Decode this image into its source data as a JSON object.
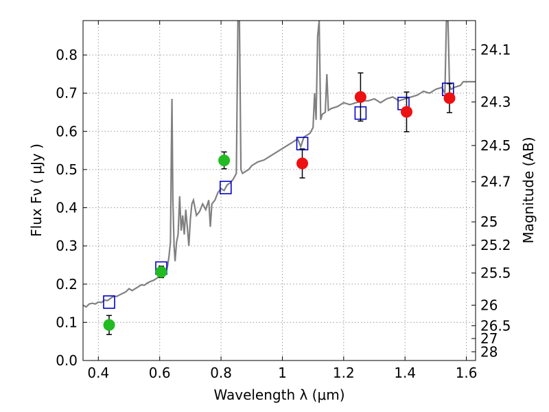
{
  "chart_data": {
    "type": "scatter",
    "title": "",
    "xlabel": "Wavelength  λ (μm)",
    "ylabel": "Flux  Fν  ( μJy )",
    "y2label": "Magnitude (AB)",
    "xlim": [
      0.35,
      1.63
    ],
    "ylim": [
      0.0,
      0.89
    ],
    "grid": true,
    "x_ticks": [
      {
        "value": 0.4,
        "label": "0.4"
      },
      {
        "value": 0.6,
        "label": "0.6"
      },
      {
        "value": 0.8,
        "label": "0.8"
      },
      {
        "value": 1.0,
        "label": "1"
      },
      {
        "value": 1.2,
        "label": "1.2"
      },
      {
        "value": 1.4,
        "label": "1.4"
      },
      {
        "value": 1.6,
        "label": "1.6"
      }
    ],
    "y_ticks": [
      {
        "value": 0.0,
        "label": "0.0"
      },
      {
        "value": 0.1,
        "label": "0.1"
      },
      {
        "value": 0.2,
        "label": "0.2"
      },
      {
        "value": 0.3,
        "label": "0.3"
      },
      {
        "value": 0.4,
        "label": "0.4"
      },
      {
        "value": 0.5,
        "label": "0.5"
      },
      {
        "value": 0.6,
        "label": "0.6"
      },
      {
        "value": 0.7,
        "label": "0.7"
      },
      {
        "value": 0.8,
        "label": "0.8"
      }
    ],
    "y2_ticks": [
      {
        "flux": 0.814,
        "label": "24.1"
      },
      {
        "flux": 0.677,
        "label": "24.3"
      },
      {
        "flux": 0.563,
        "label": "24.5"
      },
      {
        "flux": 0.468,
        "label": "24.7"
      },
      {
        "flux": 0.363,
        "label": "25"
      },
      {
        "flux": 0.302,
        "label": "25.2"
      },
      {
        "flux": 0.229,
        "label": "25.5"
      },
      {
        "flux": 0.145,
        "label": "26"
      },
      {
        "flux": 0.0912,
        "label": "26.5"
      },
      {
        "flux": 0.0575,
        "label": "27"
      },
      {
        "flux": 0.0229,
        "label": "28"
      }
    ],
    "colors": {
      "sed": "#808080",
      "model_box": "#0000cc",
      "green_point": "#22bb22",
      "red_point": "#ee1111",
      "errorbar": "#000000",
      "grid": "#9a9a9a"
    },
    "series": [
      {
        "name": "model-sed",
        "kind": "line",
        "points": [
          [
            0.35,
            0.145
          ],
          [
            0.36,
            0.14
          ],
          [
            0.37,
            0.148
          ],
          [
            0.38,
            0.15
          ],
          [
            0.39,
            0.148
          ],
          [
            0.4,
            0.153
          ],
          [
            0.41,
            0.152
          ],
          [
            0.42,
            0.158
          ],
          [
            0.43,
            0.157
          ],
          [
            0.44,
            0.163
          ],
          [
            0.45,
            0.168
          ],
          [
            0.46,
            0.168
          ],
          [
            0.47,
            0.172
          ],
          [
            0.48,
            0.176
          ],
          [
            0.49,
            0.18
          ],
          [
            0.5,
            0.188
          ],
          [
            0.51,
            0.183
          ],
          [
            0.52,
            0.188
          ],
          [
            0.53,
            0.193
          ],
          [
            0.54,
            0.198
          ],
          [
            0.55,
            0.197
          ],
          [
            0.56,
            0.203
          ],
          [
            0.57,
            0.207
          ],
          [
            0.58,
            0.21
          ],
          [
            0.59,
            0.215
          ],
          [
            0.6,
            0.222
          ],
          [
            0.61,
            0.228
          ],
          [
            0.62,
            0.232
          ],
          [
            0.625,
            0.245
          ],
          [
            0.63,
            0.27
          ],
          [
            0.635,
            0.31
          ],
          [
            0.638,
            0.55
          ],
          [
            0.64,
            0.685
          ],
          [
            0.643,
            0.42
          ],
          [
            0.647,
            0.3
          ],
          [
            0.65,
            0.26
          ],
          [
            0.655,
            0.31
          ],
          [
            0.66,
            0.33
          ],
          [
            0.665,
            0.43
          ],
          [
            0.67,
            0.34
          ],
          [
            0.675,
            0.38
          ],
          [
            0.68,
            0.33
          ],
          [
            0.685,
            0.395
          ],
          [
            0.69,
            0.35
          ],
          [
            0.695,
            0.3
          ],
          [
            0.7,
            0.37
          ],
          [
            0.705,
            0.41
          ],
          [
            0.71,
            0.42
          ],
          [
            0.72,
            0.38
          ],
          [
            0.73,
            0.39
          ],
          [
            0.74,
            0.41
          ],
          [
            0.75,
            0.395
          ],
          [
            0.76,
            0.42
          ],
          [
            0.765,
            0.35
          ],
          [
            0.77,
            0.41
          ],
          [
            0.78,
            0.42
          ],
          [
            0.79,
            0.44
          ],
          [
            0.8,
            0.45
          ],
          [
            0.81,
            0.445
          ],
          [
            0.82,
            0.46
          ],
          [
            0.83,
            0.465
          ],
          [
            0.84,
            0.475
          ],
          [
            0.85,
            0.49
          ],
          [
            0.855,
            0.89
          ],
          [
            0.86,
            0.89
          ],
          [
            0.865,
            0.5
          ],
          [
            0.87,
            0.49
          ],
          [
            0.88,
            0.495
          ],
          [
            0.89,
            0.5
          ],
          [
            0.9,
            0.51
          ],
          [
            0.92,
            0.52
          ],
          [
            0.94,
            0.525
          ],
          [
            0.96,
            0.535
          ],
          [
            0.98,
            0.545
          ],
          [
            1.0,
            0.555
          ],
          [
            1.02,
            0.565
          ],
          [
            1.04,
            0.575
          ],
          [
            1.05,
            0.58
          ],
          [
            1.06,
            0.56
          ],
          [
            1.07,
            0.585
          ],
          [
            1.08,
            0.59
          ],
          [
            1.09,
            0.595
          ],
          [
            1.1,
            0.61
          ],
          [
            1.105,
            0.7
          ],
          [
            1.11,
            0.63
          ],
          [
            1.115,
            0.85
          ],
          [
            1.12,
            0.89
          ],
          [
            1.125,
            0.63
          ],
          [
            1.13,
            0.645
          ],
          [
            1.14,
            0.65
          ],
          [
            1.145,
            0.75
          ],
          [
            1.15,
            0.655
          ],
          [
            1.16,
            0.66
          ],
          [
            1.18,
            0.665
          ],
          [
            1.2,
            0.675
          ],
          [
            1.22,
            0.67
          ],
          [
            1.24,
            0.675
          ],
          [
            1.26,
            0.68
          ],
          [
            1.28,
            0.68
          ],
          [
            1.3,
            0.685
          ],
          [
            1.32,
            0.675
          ],
          [
            1.34,
            0.685
          ],
          [
            1.36,
            0.69
          ],
          [
            1.38,
            0.68
          ],
          [
            1.4,
            0.685
          ],
          [
            1.42,
            0.69
          ],
          [
            1.44,
            0.695
          ],
          [
            1.46,
            0.705
          ],
          [
            1.48,
            0.7
          ],
          [
            1.5,
            0.71
          ],
          [
            1.52,
            0.715
          ],
          [
            1.53,
            0.7
          ],
          [
            1.535,
            0.89
          ],
          [
            1.54,
            0.89
          ],
          [
            1.545,
            0.72
          ],
          [
            1.55,
            0.71
          ],
          [
            1.56,
            0.715
          ],
          [
            1.58,
            0.72
          ],
          [
            1.59,
            0.73
          ],
          [
            1.6,
            0.73
          ],
          [
            1.62,
            0.73
          ],
          [
            1.63,
            0.73
          ]
        ]
      },
      {
        "name": "model-photometry",
        "kind": "box",
        "points": [
          [
            0.435,
            0.153
          ],
          [
            0.605,
            0.242
          ],
          [
            0.815,
            0.453
          ],
          [
            1.065,
            0.568
          ],
          [
            1.255,
            0.648
          ],
          [
            1.395,
            0.673
          ],
          [
            1.54,
            0.71
          ]
        ]
      },
      {
        "name": "observed-green",
        "kind": "circle",
        "points": [
          [
            0.435,
            0.093,
            0.025
          ],
          [
            0.605,
            0.232,
            0.015
          ],
          [
            0.81,
            0.524,
            0.022
          ]
        ]
      },
      {
        "name": "observed-red",
        "kind": "circle",
        "points": [
          [
            1.065,
            0.516,
            0.038
          ],
          [
            1.255,
            0.69,
            0.063
          ],
          [
            1.405,
            0.651,
            0.052
          ],
          [
            1.545,
            0.687,
            0.038
          ]
        ]
      }
    ]
  }
}
